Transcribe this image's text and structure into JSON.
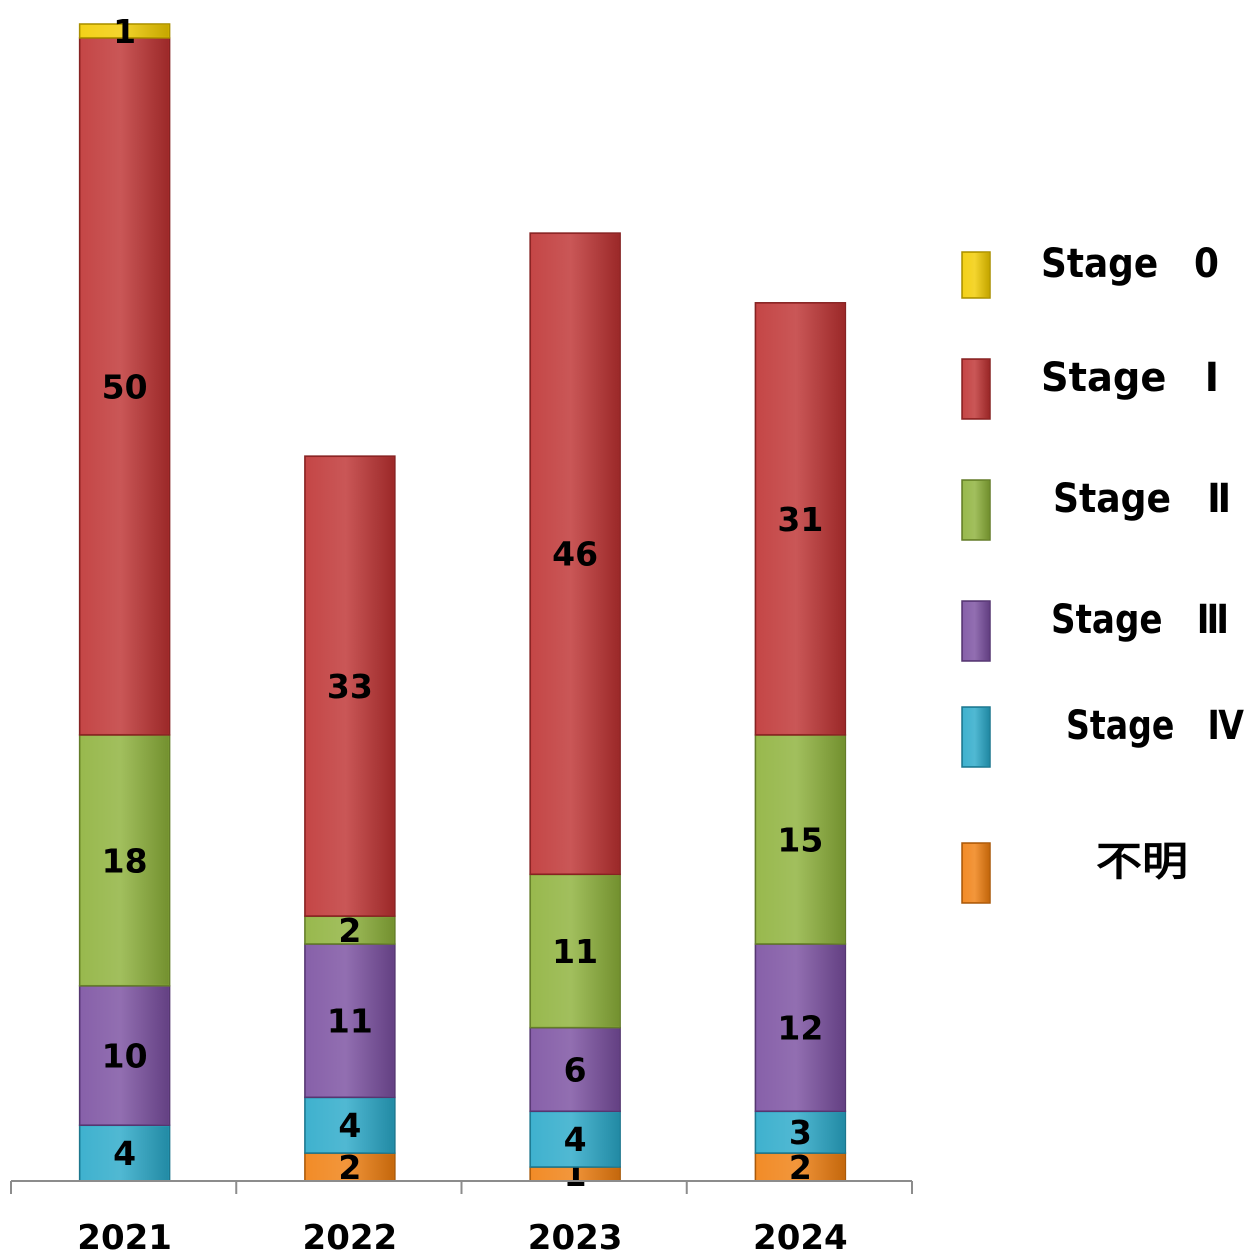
{
  "chart_data": {
    "type": "bar",
    "stacked": true,
    "categories": [
      "2021",
      "2022",
      "2023",
      "2024"
    ],
    "series": [
      {
        "name": "不明",
        "color": "#F07F10",
        "values": [
          0,
          2,
          1,
          2
        ]
      },
      {
        "name": "Stage　Ⅳ",
        "color": "#2AA9C9",
        "values": [
          4,
          4,
          4,
          3
        ]
      },
      {
        "name": "Stage　Ⅲ",
        "color": "#7A4FA0",
        "values": [
          10,
          11,
          6,
          12
        ]
      },
      {
        "name": "Stage　Ⅱ",
        "color": "#8DB13A",
        "values": [
          18,
          2,
          11,
          15
        ]
      },
      {
        "name": "Stage　Ⅰ",
        "color": "#BE3232",
        "values": [
          50,
          33,
          46,
          31
        ]
      },
      {
        "name": "Stage　0",
        "color": "#F2CC00",
        "values": [
          1,
          0,
          0,
          0
        ]
      }
    ],
    "legend_order": [
      "Stage　0",
      "Stage　Ⅰ",
      "Stage　Ⅱ",
      "Stage　Ⅲ",
      "Stage　Ⅳ",
      "不明"
    ],
    "legend_position": "right",
    "ylim": [
      0,
      83
    ],
    "y_axis_visible": false,
    "grid": false,
    "data_labels": true,
    "title": "",
    "xlabel": "",
    "ylabel": ""
  }
}
